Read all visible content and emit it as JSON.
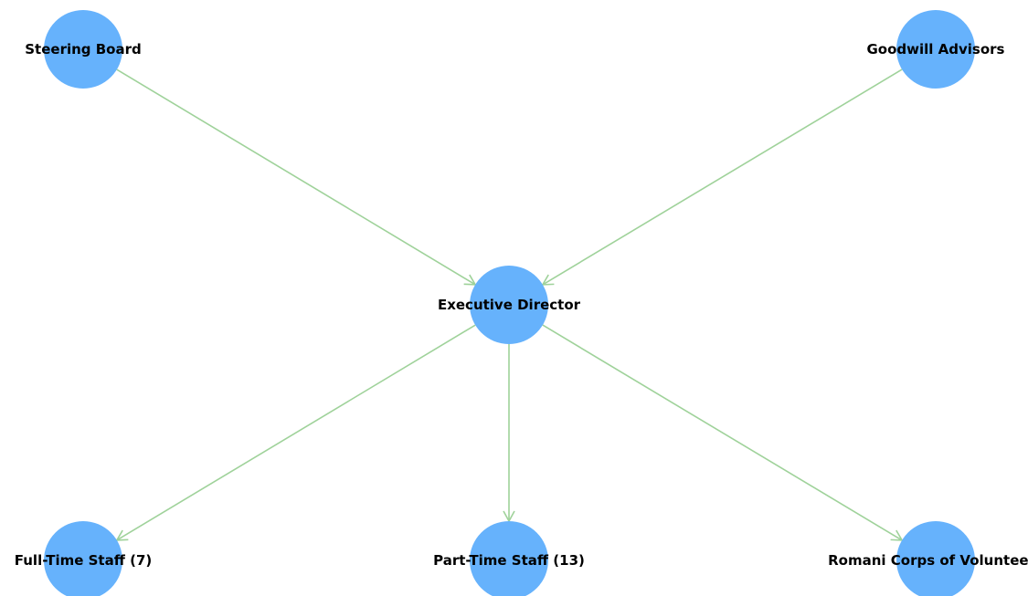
{
  "diagram": {
    "colors": {
      "node_fill": "#66b2fc",
      "edge_stroke": "#9fd29a",
      "label_color": "#000000",
      "background": "#ffffff"
    },
    "nodes": [
      {
        "id": "steering-board",
        "label": "Steering Board"
      },
      {
        "id": "goodwill-advisors",
        "label": "Goodwill Advisors"
      },
      {
        "id": "executive-director",
        "label": "Executive Director"
      },
      {
        "id": "full-time-staff",
        "label": "Full-Time Staff (7)"
      },
      {
        "id": "part-time-staff",
        "label": "Part-Time Staff (13)"
      },
      {
        "id": "romani-corps",
        "label": "Romani Corps of Volunteers"
      }
    ],
    "edges": [
      {
        "from": "steering-board",
        "to": "executive-director"
      },
      {
        "from": "goodwill-advisors",
        "to": "executive-director"
      },
      {
        "from": "executive-director",
        "to": "full-time-staff"
      },
      {
        "from": "executive-director",
        "to": "part-time-staff"
      },
      {
        "from": "executive-director",
        "to": "romani-corps"
      }
    ]
  }
}
